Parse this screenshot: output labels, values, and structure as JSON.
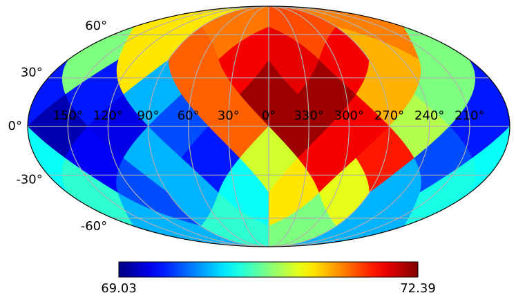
{
  "chart_data": {
    "type": "mollweide",
    "colormap": "jet",
    "grid": true,
    "vlim": [
      69.03,
      72.39
    ],
    "values": [
      71.58,
      71.21,
      71.55,
      71.72,
      71.99,
      71.65,
      71.21,
      70.71,
      70.71,
      71.38,
      71.99,
      72.05,
      72.29,
      71.65,
      70.04,
      69.53,
      69.53,
      70.71,
      71.38,
      72.29,
      71.65,
      69.7,
      69.37,
      69.2,
      69.53,
      70.88,
      71.99,
      72.29,
      70.98,
      69.53,
      70.04,
      69.43,
      70.31,
      69.7,
      71.89,
      71.99,
      70.31,
      70.04,
      69.7,
      70.44,
      70.37,
      70.04,
      71.05,
      71.21,
      70.44,
      70.04,
      70.04,
      70.71
    ],
    "latticks": [
      {
        "value": 60,
        "label": "60°"
      },
      {
        "value": 30,
        "label": "30°"
      },
      {
        "value": 0,
        "label": "0°"
      },
      {
        "value": -30,
        "label": "-30°"
      },
      {
        "value": -60,
        "label": "-60°"
      }
    ],
    "lonticks": [
      {
        "value": 150,
        "label": "150°"
      },
      {
        "value": 120,
        "label": "120°"
      },
      {
        "value": 90,
        "label": "90°"
      },
      {
        "value": 60,
        "label": "60°"
      },
      {
        "value": 30,
        "label": "30°"
      },
      {
        "value": 0,
        "label": "0°"
      },
      {
        "value": 330,
        "label": "330°"
      },
      {
        "value": 300,
        "label": "300°"
      },
      {
        "value": 270,
        "label": "270°"
      },
      {
        "value": 240,
        "label": "240°"
      },
      {
        "value": 210,
        "label": "210°"
      }
    ]
  }
}
